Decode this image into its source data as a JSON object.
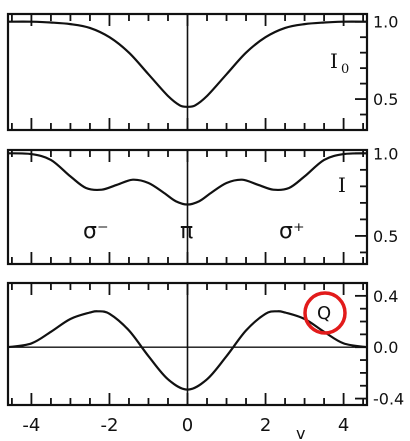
{
  "chart_data": [
    {
      "type": "line",
      "label": "I",
      "label_sub": "0",
      "x": [
        -4.6,
        -4.0,
        -3.5,
        -3.0,
        -2.5,
        -2.0,
        -1.5,
        -1.0,
        -0.5,
        -0.2,
        0.0,
        0.2,
        0.5,
        1.0,
        1.5,
        2.0,
        2.5,
        3.0,
        3.5,
        4.0,
        4.6
      ],
      "y": [
        1.0,
        1.0,
        0.995,
        0.985,
        0.96,
        0.9,
        0.8,
        0.66,
        0.52,
        0.46,
        0.45,
        0.46,
        0.52,
        0.66,
        0.8,
        0.9,
        0.96,
        0.985,
        0.995,
        1.0,
        1.0
      ],
      "ylim": [
        0.3,
        1.05
      ],
      "ytick_labels": [
        "1.0",
        "0.5"
      ],
      "ytick_values": [
        1.0,
        0.5
      ]
    },
    {
      "type": "line",
      "label": "I",
      "x": [
        -4.6,
        -4.0,
        -3.5,
        -3.0,
        -2.6,
        -2.2,
        -1.8,
        -1.4,
        -1.0,
        -0.6,
        -0.3,
        0.0,
        0.3,
        0.6,
        1.0,
        1.4,
        1.8,
        2.2,
        2.6,
        3.0,
        3.5,
        4.0,
        4.6
      ],
      "y": [
        1.0,
        0.995,
        0.96,
        0.86,
        0.79,
        0.78,
        0.81,
        0.84,
        0.82,
        0.76,
        0.71,
        0.69,
        0.71,
        0.76,
        0.82,
        0.84,
        0.81,
        0.78,
        0.79,
        0.86,
        0.96,
        0.995,
        1.0
      ],
      "ylim": [
        0.33,
        1.02
      ],
      "ytick_labels": [
        "1.0",
        "0.5"
      ],
      "ytick_values": [
        1.0,
        0.5
      ],
      "annotations": [
        {
          "text": "σ⁻",
          "x": -2.3
        },
        {
          "text": "π",
          "x": 0.0
        },
        {
          "text": "σ⁺",
          "x": 2.3
        }
      ]
    },
    {
      "type": "line",
      "label": "Q",
      "x": [
        -4.6,
        -4.0,
        -3.5,
        -3.0,
        -2.5,
        -2.3,
        -2.0,
        -1.5,
        -1.0,
        -0.5,
        0.0,
        0.5,
        1.0,
        1.5,
        2.0,
        2.3,
        2.5,
        3.0,
        3.5,
        4.0,
        4.6
      ],
      "y": [
        0.0,
        0.03,
        0.12,
        0.22,
        0.27,
        0.28,
        0.26,
        0.13,
        -0.07,
        -0.25,
        -0.33,
        -0.25,
        -0.07,
        0.13,
        0.26,
        0.28,
        0.27,
        0.22,
        0.12,
        0.03,
        0.0
      ],
      "ylim": [
        -0.45,
        0.5
      ],
      "ytick_labels": [
        "0.4",
        "0.0",
        "-0.4"
      ],
      "ytick_values": [
        0.4,
        0.0,
        -0.4
      ],
      "zero_line": true
    }
  ],
  "x_axis": {
    "range": [
      -4.6,
      4.6
    ],
    "label": "v",
    "tick_labels": [
      "-4",
      "-2",
      "0",
      "2",
      "4"
    ],
    "tick_values": [
      -4,
      -2,
      0,
      2,
      4
    ]
  },
  "highlight": {
    "target": "Q",
    "color": "#e21b1b"
  }
}
